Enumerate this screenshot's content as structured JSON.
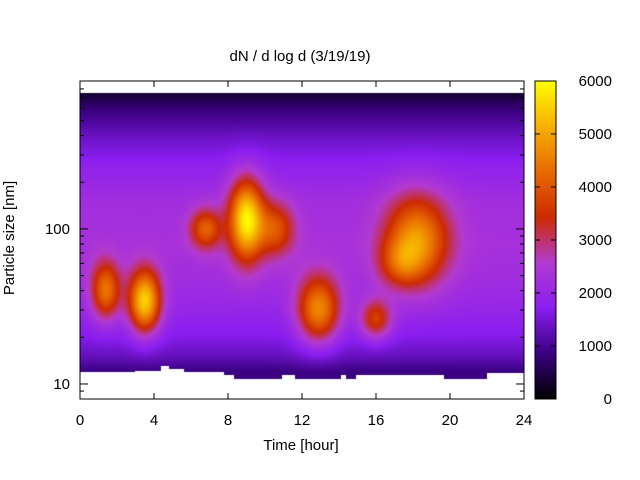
{
  "chart_data": {
    "type": "heatmap",
    "title": "dN / d log d (3/19/19)",
    "xlabel": "Time [hour]",
    "ylabel": "Particle size [nm]",
    "xlim": [
      0,
      24
    ],
    "x_ticks": [
      "0",
      "4",
      "8",
      "12",
      "16",
      "20",
      "24"
    ],
    "x_tick_values": [
      0,
      4,
      8,
      12,
      16,
      20,
      24
    ],
    "y_scale": "log",
    "ylim": [
      8,
      900
    ],
    "y_ticks": [
      "10",
      "100"
    ],
    "y_tick_values": [
      10,
      100
    ],
    "colorbar": {
      "range": [
        0,
        6000
      ],
      "ticks": [
        "0",
        "1000",
        "2000",
        "3000",
        "4000",
        "5000",
        "6000"
      ],
      "tick_values": [
        0,
        1000,
        2000,
        3000,
        4000,
        5000,
        6000
      ],
      "colormap": [
        "#000000",
        "#3a0080",
        "#8a1ef0",
        "#b33ad0",
        "#cc2b00",
        "#e86a00",
        "#f6b000",
        "#ffff00"
      ]
    },
    "data_extent": {
      "y_max": 750
    },
    "lower_cutoff": [
      {
        "x": [
          0,
          3
        ],
        "y": 12
      },
      {
        "x": [
          3,
          4.4
        ],
        "y": 12.2
      },
      {
        "x": [
          4.4,
          4.8
        ],
        "y": 13
      },
      {
        "x": [
          4.8,
          5.6
        ],
        "y": 12.5
      },
      {
        "x": [
          5.6,
          7.8
        ],
        "y": 12
      },
      {
        "x": [
          7.8,
          8.3
        ],
        "y": 11.4
      },
      {
        "x": [
          8.3,
          10.9
        ],
        "y": 10.8
      },
      {
        "x": [
          10.9,
          11.6
        ],
        "y": 11.4
      },
      {
        "x": [
          11.6,
          14.1
        ],
        "y": 10.8
      },
      {
        "x": [
          14.1,
          14.4
        ],
        "y": 11.4
      },
      {
        "x": [
          14.4,
          14.9
        ],
        "y": 10.8
      },
      {
        "x": [
          14.9,
          19.7
        ],
        "y": 11.4
      },
      {
        "x": [
          19.7,
          22
        ],
        "y": 10.8
      },
      {
        "x": [
          22,
          24
        ],
        "y": 11.8
      }
    ],
    "background": [
      {
        "d": 12,
        "n": 850
      },
      {
        "d": 15,
        "n": 1300
      },
      {
        "d": 20,
        "n": 1650
      },
      {
        "d": 30,
        "n": 1950
      },
      {
        "d": 50,
        "n": 2200
      },
      {
        "d": 80,
        "n": 2300
      },
      {
        "d": 150,
        "n": 2200
      },
      {
        "d": 250,
        "n": 1850
      },
      {
        "d": 400,
        "n": 1350
      },
      {
        "d": 600,
        "n": 800
      },
      {
        "d": 750,
        "n": 300
      }
    ],
    "features": [
      {
        "t": 1.4,
        "d": 40,
        "value": 4000,
        "width_t": 0.55,
        "width_logd": 0.13
      },
      {
        "t": 3.5,
        "d": 34,
        "value": 5200,
        "width_t": 0.6,
        "width_logd": 0.14
      },
      {
        "t": 6.8,
        "d": 100,
        "value": 3600,
        "width_t": 0.6,
        "width_logd": 0.09
      },
      {
        "t": 9.0,
        "d": 115,
        "value": 5300,
        "width_t": 0.65,
        "width_logd": 0.18
      },
      {
        "t": 10.6,
        "d": 100,
        "value": 3400,
        "width_t": 0.7,
        "width_logd": 0.12
      },
      {
        "t": 12.9,
        "d": 30,
        "value": 4400,
        "width_t": 0.8,
        "width_logd": 0.15
      },
      {
        "t": 16.0,
        "d": 26,
        "value": 3500,
        "width_t": 0.6,
        "width_logd": 0.09
      },
      {
        "t": 17.3,
        "d": 60,
        "value": 2800,
        "width_t": 0.8,
        "width_logd": 0.1
      },
      {
        "t": 18.2,
        "d": 85,
        "value": 4300,
        "width_t": 1.2,
        "width_logd": 0.2
      }
    ]
  }
}
